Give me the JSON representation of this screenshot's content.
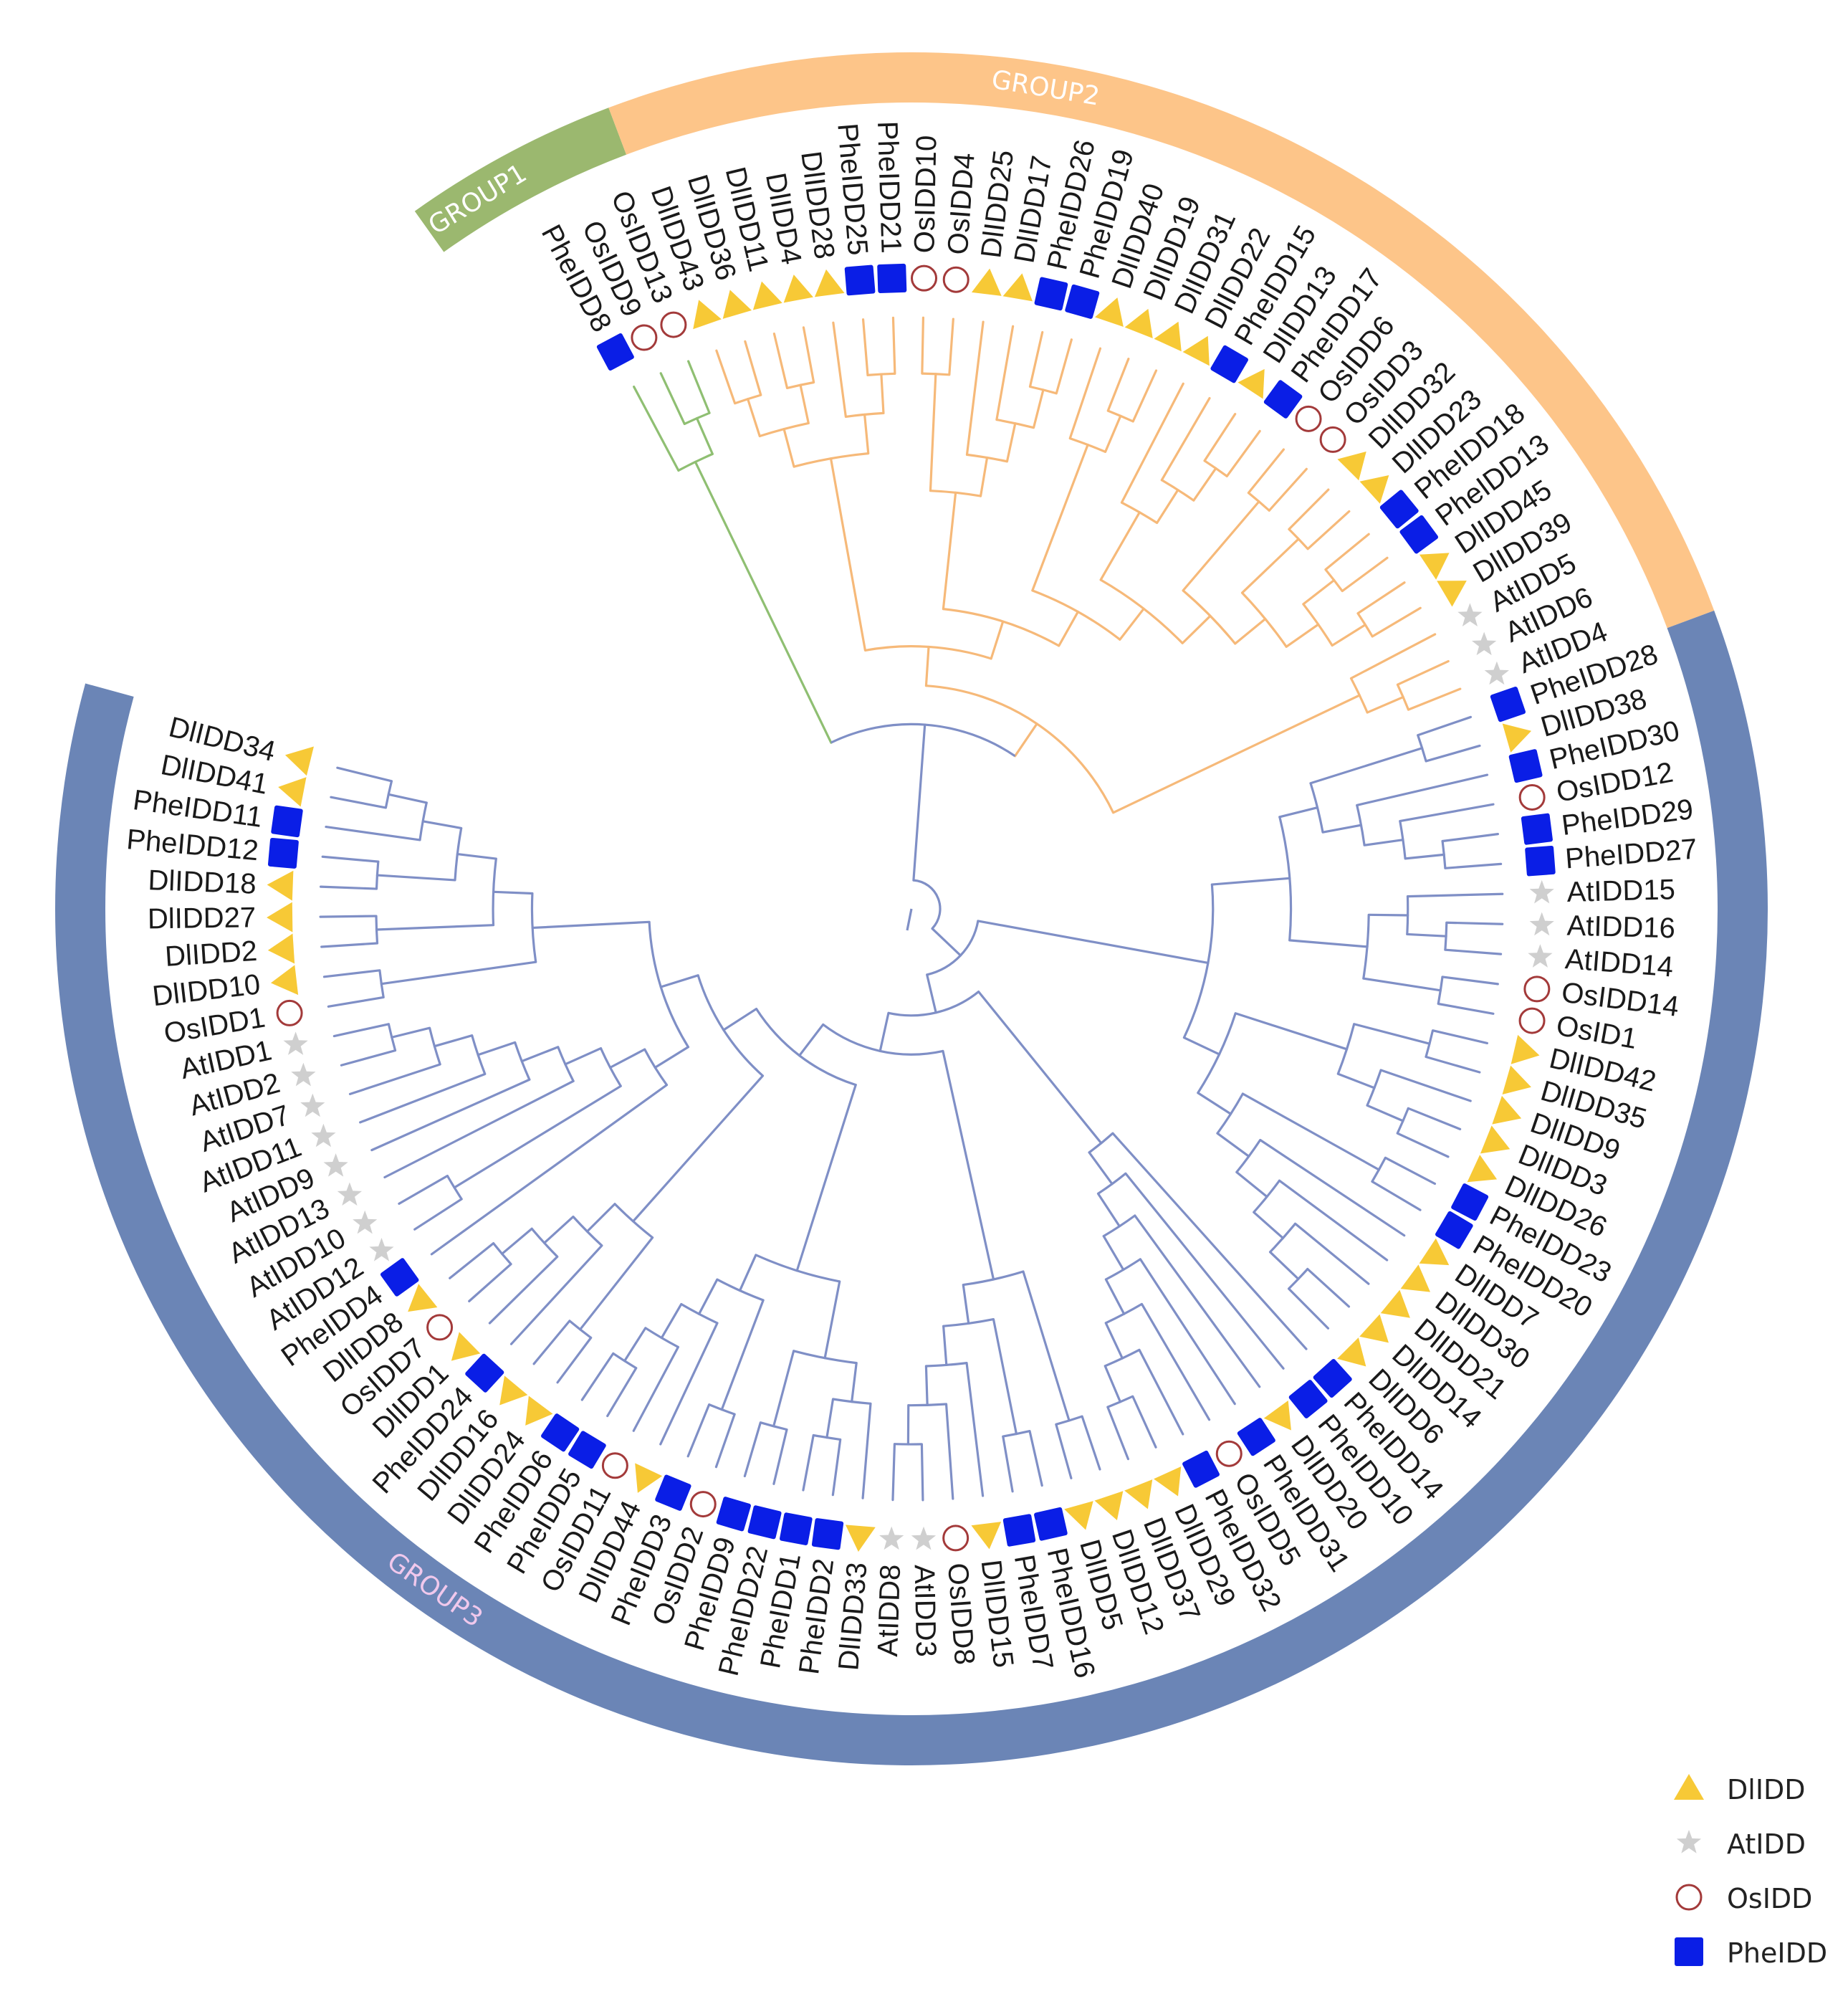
{
  "colors": {
    "group1": "#9bb86f",
    "group2": "#fdc589",
    "group3": "#6b85b6",
    "branch_group1": "#8fbf72",
    "branch_group2": "#f6b979",
    "branch_group3": "#7f8fc6",
    "DlIDD": "#f7c936",
    "AtIDD": "#cfcfcf",
    "OsIDD": "#a33a3a",
    "PheIDD": "#0a1ee6",
    "group_label_text_light": "#ffffff",
    "group3_label_text": "#f0c8ec"
  },
  "groups": [
    {
      "id": "group1",
      "label": "GROUP1"
    },
    {
      "id": "group2",
      "label": "GROUP2"
    },
    {
      "id": "group3",
      "label": "GROUP3"
    }
  ],
  "legend": [
    {
      "family": "DlIDD",
      "label": "DlIDD",
      "shape": "triangle"
    },
    {
      "family": "AtIDD",
      "label": "AtIDD",
      "shape": "star"
    },
    {
      "family": "OsIDD",
      "label": "OsIDD",
      "shape": "open-circle"
    },
    {
      "family": "PheIDD",
      "label": "PheIDD",
      "shape": "square"
    }
  ],
  "leaves": [
    {
      "name": "PheIDD8",
      "family": "PheIDD",
      "group": "group1"
    },
    {
      "name": "OsIDD9",
      "family": "OsIDD",
      "group": "group1"
    },
    {
      "name": "OsIDD13",
      "family": "OsIDD",
      "group": "group1"
    },
    {
      "name": "DlIDD43",
      "family": "DlIDD",
      "group": "group2"
    },
    {
      "name": "DlIDD36",
      "family": "DlIDD",
      "group": "group2"
    },
    {
      "name": "DlIDD11",
      "family": "DlIDD",
      "group": "group2"
    },
    {
      "name": "DlIDD4",
      "family": "DlIDD",
      "group": "group2"
    },
    {
      "name": "DlIDD28",
      "family": "DlIDD",
      "group": "group2"
    },
    {
      "name": "PheIDD25",
      "family": "PheIDD",
      "group": "group2"
    },
    {
      "name": "PheIDD21",
      "family": "PheIDD",
      "group": "group2"
    },
    {
      "name": "OsIDD10",
      "family": "OsIDD",
      "group": "group2"
    },
    {
      "name": "OsIDD4",
      "family": "OsIDD",
      "group": "group2"
    },
    {
      "name": "DlIDD25",
      "family": "DlIDD",
      "group": "group2"
    },
    {
      "name": "DlIDD17",
      "family": "DlIDD",
      "group": "group2"
    },
    {
      "name": "PheIDD26",
      "family": "PheIDD",
      "group": "group2"
    },
    {
      "name": "PheIDD19",
      "family": "PheIDD",
      "group": "group2"
    },
    {
      "name": "DlIDD40",
      "family": "DlIDD",
      "group": "group2"
    },
    {
      "name": "DlIDD19",
      "family": "DlIDD",
      "group": "group2"
    },
    {
      "name": "DlIDD31",
      "family": "DlIDD",
      "group": "group2"
    },
    {
      "name": "DlIDD22",
      "family": "DlIDD",
      "group": "group2"
    },
    {
      "name": "PheIDD15",
      "family": "PheIDD",
      "group": "group2"
    },
    {
      "name": "DlIDD13",
      "family": "DlIDD",
      "group": "group2"
    },
    {
      "name": "PheIDD17",
      "family": "PheIDD",
      "group": "group2"
    },
    {
      "name": "OsIDD6",
      "family": "OsIDD",
      "group": "group2"
    },
    {
      "name": "OsIDD3",
      "family": "OsIDD",
      "group": "group2"
    },
    {
      "name": "DlIDD32",
      "family": "DlIDD",
      "group": "group2"
    },
    {
      "name": "DlIDD23",
      "family": "DlIDD",
      "group": "group2"
    },
    {
      "name": "PheIDD18",
      "family": "PheIDD",
      "group": "group2"
    },
    {
      "name": "PheIDD13",
      "family": "PheIDD",
      "group": "group2"
    },
    {
      "name": "DlIDD45",
      "family": "DlIDD",
      "group": "group2"
    },
    {
      "name": "DlIDD39",
      "family": "DlIDD",
      "group": "group2"
    },
    {
      "name": "AtIDD5",
      "family": "AtIDD",
      "group": "group2"
    },
    {
      "name": "AtIDD6",
      "family": "AtIDD",
      "group": "group2"
    },
    {
      "name": "AtIDD4",
      "family": "AtIDD",
      "group": "group2"
    },
    {
      "name": "PheIDD28",
      "family": "PheIDD",
      "group": "group3"
    },
    {
      "name": "DlIDD38",
      "family": "DlIDD",
      "group": "group3"
    },
    {
      "name": "PheIDD30",
      "family": "PheIDD",
      "group": "group3"
    },
    {
      "name": "OsIDD12",
      "family": "OsIDD",
      "group": "group3"
    },
    {
      "name": "PheIDD29",
      "family": "PheIDD",
      "group": "group3"
    },
    {
      "name": "PheIDD27",
      "family": "PheIDD",
      "group": "group3"
    },
    {
      "name": "AtIDD15",
      "family": "AtIDD",
      "group": "group3"
    },
    {
      "name": "AtIDD16",
      "family": "AtIDD",
      "group": "group3"
    },
    {
      "name": "AtIDD14",
      "family": "AtIDD",
      "group": "group3"
    },
    {
      "name": "OsIDD14",
      "family": "OsIDD",
      "group": "group3"
    },
    {
      "name": "OsID1",
      "family": "OsIDD",
      "group": "group3"
    },
    {
      "name": "DlIDD42",
      "family": "DlIDD",
      "group": "group3"
    },
    {
      "name": "DlIDD35",
      "family": "DlIDD",
      "group": "group3"
    },
    {
      "name": "DlIDD9",
      "family": "DlIDD",
      "group": "group3"
    },
    {
      "name": "DlIDD3",
      "family": "DlIDD",
      "group": "group3"
    },
    {
      "name": "DlIDD26",
      "family": "DlIDD",
      "group": "group3"
    },
    {
      "name": "PheIDD23",
      "family": "PheIDD",
      "group": "group3"
    },
    {
      "name": "PheIDD20",
      "family": "PheIDD",
      "group": "group3"
    },
    {
      "name": "DlIDD7",
      "family": "DlIDD",
      "group": "group3"
    },
    {
      "name": "DlIDD30",
      "family": "DlIDD",
      "group": "group3"
    },
    {
      "name": "DlIDD21",
      "family": "DlIDD",
      "group": "group3"
    },
    {
      "name": "DlIDD14",
      "family": "DlIDD",
      "group": "group3"
    },
    {
      "name": "DlIDD6",
      "family": "DlIDD",
      "group": "group3"
    },
    {
      "name": "PheIDD14",
      "family": "PheIDD",
      "group": "group3"
    },
    {
      "name": "PheIDD10",
      "family": "PheIDD",
      "group": "group3"
    },
    {
      "name": "DlIDD20",
      "family": "DlIDD",
      "group": "group3"
    },
    {
      "name": "PheIDD31",
      "family": "PheIDD",
      "group": "group3"
    },
    {
      "name": "OsIDD5",
      "family": "OsIDD",
      "group": "group3"
    },
    {
      "name": "PheIDD32",
      "family": "PheIDD",
      "group": "group3"
    },
    {
      "name": "DlIDD29",
      "family": "DlIDD",
      "group": "group3"
    },
    {
      "name": "DlIDD37",
      "family": "DlIDD",
      "group": "group3"
    },
    {
      "name": "DlIDD12",
      "family": "DlIDD",
      "group": "group3"
    },
    {
      "name": "DlIDD5",
      "family": "DlIDD",
      "group": "group3"
    },
    {
      "name": "PheIDD16",
      "family": "PheIDD",
      "group": "group3"
    },
    {
      "name": "PheIDD7",
      "family": "PheIDD",
      "group": "group3"
    },
    {
      "name": "DlIDD15",
      "family": "DlIDD",
      "group": "group3"
    },
    {
      "name": "OsIDD8",
      "family": "OsIDD",
      "group": "group3"
    },
    {
      "name": "AtIDD3",
      "family": "AtIDD",
      "group": "group3"
    },
    {
      "name": "AtIDD8",
      "family": "AtIDD",
      "group": "group3"
    },
    {
      "name": "DlIDD33",
      "family": "DlIDD",
      "group": "group3"
    },
    {
      "name": "PheIDD2",
      "family": "PheIDD",
      "group": "group3"
    },
    {
      "name": "PheIDD1",
      "family": "PheIDD",
      "group": "group3"
    },
    {
      "name": "PheIDD22",
      "family": "PheIDD",
      "group": "group3"
    },
    {
      "name": "PheIDD9",
      "family": "PheIDD",
      "group": "group3"
    },
    {
      "name": "OsIDD2",
      "family": "OsIDD",
      "group": "group3"
    },
    {
      "name": "PheIDD3",
      "family": "PheIDD",
      "group": "group3"
    },
    {
      "name": "DlIDD44",
      "family": "DlIDD",
      "group": "group3"
    },
    {
      "name": "OsIDD11",
      "family": "OsIDD",
      "group": "group3"
    },
    {
      "name": "PheIDD5",
      "family": "PheIDD",
      "group": "group3"
    },
    {
      "name": "PheIDD6",
      "family": "PheIDD",
      "group": "group3"
    },
    {
      "name": "DlIDD24",
      "family": "DlIDD",
      "group": "group3"
    },
    {
      "name": "DlIDD16",
      "family": "DlIDD",
      "group": "group3"
    },
    {
      "name": "PheIDD24",
      "family": "PheIDD",
      "group": "group3"
    },
    {
      "name": "DlIDD1",
      "family": "DlIDD",
      "group": "group3"
    },
    {
      "name": "OsIDD7",
      "family": "OsIDD",
      "group": "group3"
    },
    {
      "name": "DlIDD8",
      "family": "DlIDD",
      "group": "group3"
    },
    {
      "name": "PheIDD4",
      "family": "PheIDD",
      "group": "group3"
    },
    {
      "name": "AtIDD12",
      "family": "AtIDD",
      "group": "group3"
    },
    {
      "name": "AtIDD10",
      "family": "AtIDD",
      "group": "group3"
    },
    {
      "name": "AtIDD13",
      "family": "AtIDD",
      "group": "group3"
    },
    {
      "name": "AtIDD9",
      "family": "AtIDD",
      "group": "group3"
    },
    {
      "name": "AtIDD11",
      "family": "AtIDD",
      "group": "group3"
    },
    {
      "name": "AtIDD7",
      "family": "AtIDD",
      "group": "group3"
    },
    {
      "name": "AtIDD2",
      "family": "AtIDD",
      "group": "group3"
    },
    {
      "name": "AtIDD1",
      "family": "AtIDD",
      "group": "group3"
    },
    {
      "name": "OsIDD1",
      "family": "OsIDD",
      "group": "group3"
    },
    {
      "name": "DlIDD10",
      "family": "DlIDD",
      "group": "group3"
    },
    {
      "name": "DlIDD2",
      "family": "DlIDD",
      "group": "group3"
    },
    {
      "name": "DlIDD27",
      "family": "DlIDD",
      "group": "group3"
    },
    {
      "name": "DlIDD18",
      "family": "DlIDD",
      "group": "group3"
    },
    {
      "name": "PheIDD12",
      "family": "PheIDD",
      "group": "group3"
    },
    {
      "name": "PheIDD11",
      "family": "PheIDD",
      "group": "group3"
    },
    {
      "name": "DlIDD41",
      "family": "DlIDD",
      "group": "group3"
    },
    {
      "name": "DlIDD34",
      "family": "DlIDD",
      "group": "group3"
    }
  ]
}
